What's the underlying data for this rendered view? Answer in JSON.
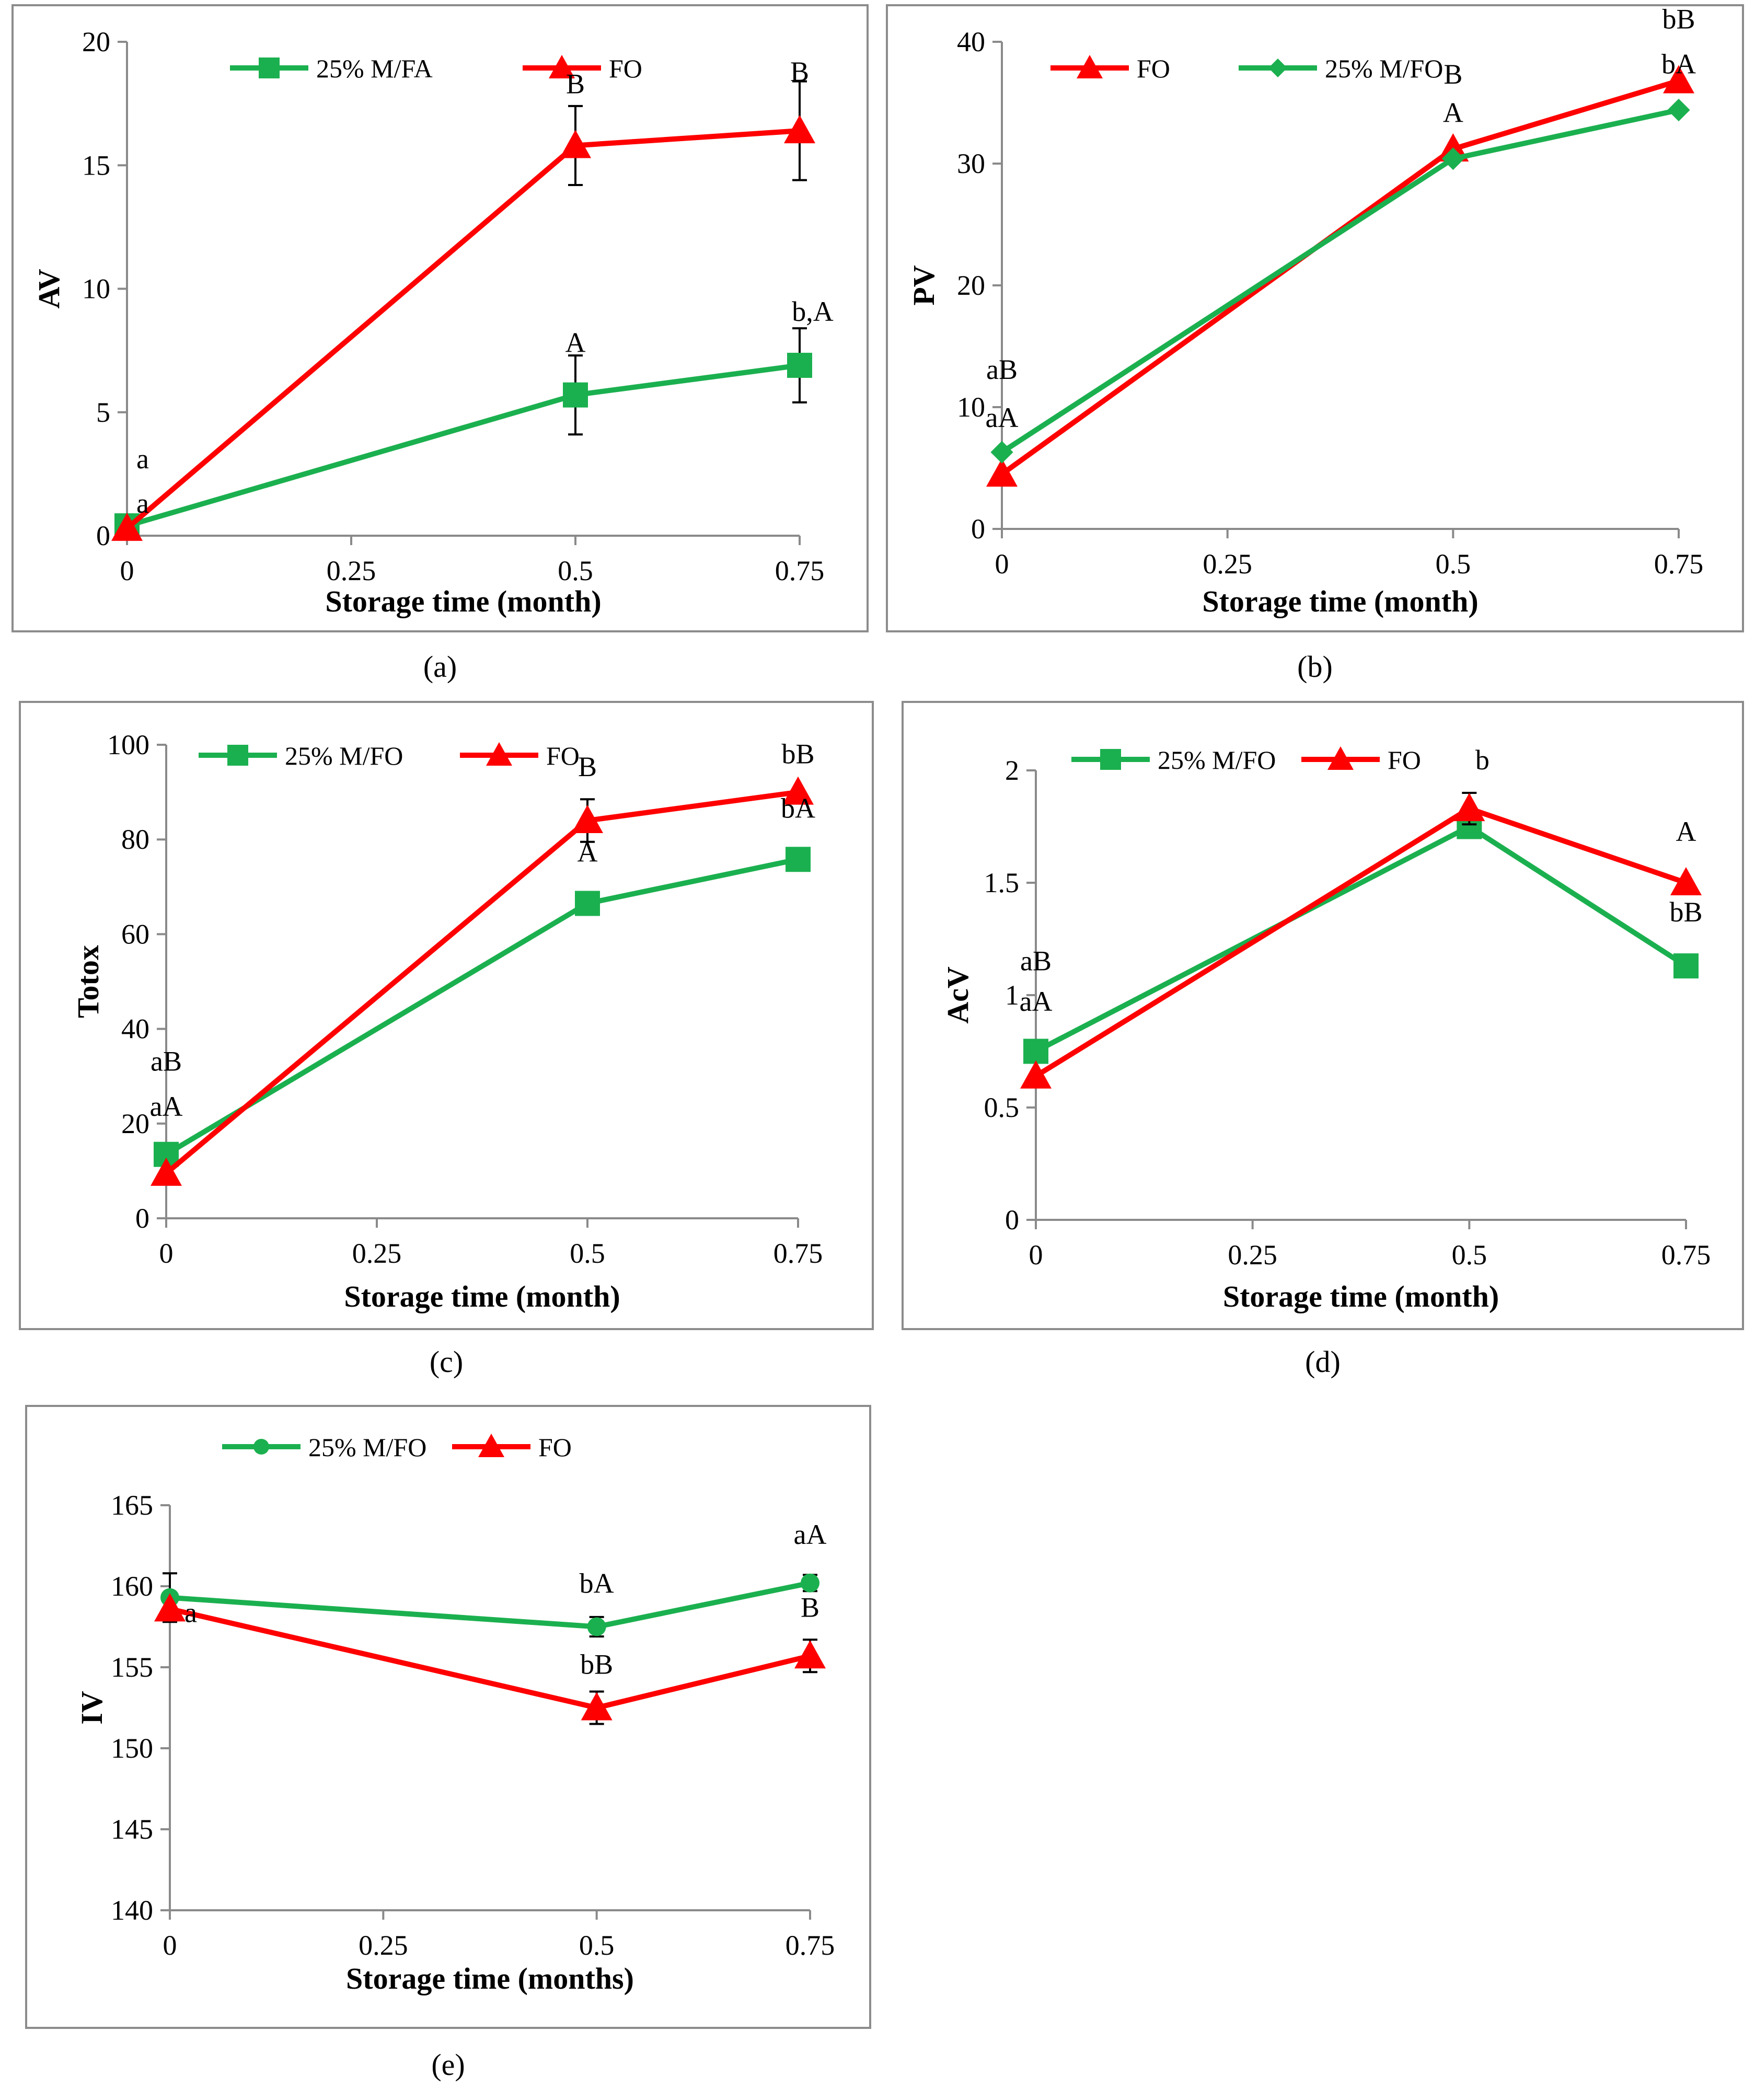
{
  "colors": {
    "green": "#1bb04f",
    "red": "#ff0000",
    "axis": "#8a8a8a",
    "frame": "#8c8c8c",
    "text": "#000000"
  },
  "chart_data": [
    {
      "id": "a",
      "type": "line",
      "panel_label": "(a)",
      "xlabel": "Storage time (month)",
      "ylabel": "AV",
      "xlim": [
        0,
        0.75
      ],
      "ylim": [
        0,
        20
      ],
      "xticks": [
        "0",
        "0.25",
        "0.5",
        "0.75"
      ],
      "yticks": [
        "0",
        "5",
        "10",
        "15",
        "20"
      ],
      "legend": [
        "25% M/FA",
        "FO"
      ],
      "series": [
        {
          "name": "25% M/FA",
          "color": "green",
          "marker": "square",
          "x": [
            0,
            0.5,
            0.75
          ],
          "y": [
            0.4,
            5.7,
            6.9
          ],
          "err": [
            0,
            1.6,
            1.5
          ]
        },
        {
          "name": "FO",
          "color": "red",
          "marker": "triangle",
          "x": [
            0,
            0.5,
            0.75
          ],
          "y": [
            0.3,
            15.8,
            16.4
          ],
          "err": [
            0,
            1.6,
            2.0
          ]
        }
      ],
      "annotations": [
        {
          "text": "a",
          "x": 0,
          "y": 0.4
        },
        {
          "text": "a",
          "x": 0,
          "y": 0.3
        },
        {
          "text": "A",
          "x": 0.5,
          "y": 5.7
        },
        {
          "text": "B",
          "x": 0.5,
          "y": 15.8
        },
        {
          "text": "b,A",
          "x": 0.75,
          "y": 6.9
        },
        {
          "text": "B",
          "x": 0.75,
          "y": 16.4
        }
      ]
    },
    {
      "id": "b",
      "type": "line",
      "panel_label": "(b)",
      "xlabel": "Storage time (month)",
      "ylabel": "PV",
      "xlim": [
        0,
        0.75
      ],
      "ylim": [
        0,
        40
      ],
      "xticks": [
        "0",
        "0.25",
        "0.5",
        "0.75"
      ],
      "yticks": [
        "0",
        "10",
        "20",
        "30",
        "40"
      ],
      "legend": [
        "FO",
        "25% M/FO"
      ],
      "series": [
        {
          "name": "FO",
          "color": "red",
          "marker": "triangle",
          "x": [
            0,
            0.5,
            0.75
          ],
          "y": [
            4.5,
            31.2,
            36.8
          ],
          "err": [
            0,
            0,
            0
          ]
        },
        {
          "name": "25% M/FO",
          "color": "green",
          "marker": "diamond",
          "x": [
            0,
            0.5,
            0.75
          ],
          "y": [
            6.3,
            30.4,
            34.4
          ],
          "err": [
            0,
            0,
            0
          ]
        }
      ],
      "annotations": [
        {
          "text": "aB",
          "x": 0,
          "y": 6.3
        },
        {
          "text": "aA",
          "x": 0,
          "y": 4.5
        },
        {
          "text": "B",
          "x": 0.5,
          "y": 31.2
        },
        {
          "text": "A",
          "x": 0.5,
          "y": 30.4
        },
        {
          "text": "bB",
          "x": 0.75,
          "y": 36.8
        },
        {
          "text": "bA",
          "x": 0.75,
          "y": 34.4
        }
      ]
    },
    {
      "id": "c",
      "type": "line",
      "panel_label": "(c)",
      "xlabel": "Storage time (month)",
      "ylabel": "Totox",
      "xlim": [
        0,
        0.75
      ],
      "ylim": [
        0,
        100
      ],
      "xticks": [
        "0",
        "0.25",
        "0.5",
        "0.75"
      ],
      "yticks": [
        "0",
        "20",
        "40",
        "60",
        "80",
        "100"
      ],
      "legend": [
        "25% M/FO",
        "FO"
      ],
      "series": [
        {
          "name": "25% M/FO",
          "color": "green",
          "marker": "square",
          "x": [
            0,
            0.5,
            0.75
          ],
          "y": [
            13.5,
            66.5,
            75.8
          ],
          "err": [
            0,
            0,
            0
          ]
        },
        {
          "name": "FO",
          "color": "red",
          "marker": "triangle",
          "x": [
            0,
            0.5,
            0.75
          ],
          "y": [
            9.5,
            84.0,
            90.0
          ],
          "err": [
            0,
            4.5,
            0
          ]
        }
      ],
      "annotations": [
        {
          "text": "aB",
          "x": 0,
          "y": 13.5
        },
        {
          "text": "aA",
          "x": 0,
          "y": 9.5
        },
        {
          "text": "B",
          "x": 0.5,
          "y": 84.0
        },
        {
          "text": "A",
          "x": 0.5,
          "y": 66.5
        },
        {
          "text": "bB",
          "x": 0.75,
          "y": 90.0
        },
        {
          "text": "bA",
          "x": 0.75,
          "y": 75.8
        }
      ]
    },
    {
      "id": "d",
      "type": "line",
      "panel_label": "(d)",
      "xlabel": "Storage time (month)",
      "ylabel": "AcV",
      "xlim": [
        0,
        0.75
      ],
      "ylim": [
        0,
        2
      ],
      "xticks": [
        "0",
        "0.25",
        "0.5",
        "0.75"
      ],
      "yticks": [
        "0",
        "0.5",
        "1",
        "1.5",
        "2"
      ],
      "legend": [
        "25% M/FO",
        "FO"
      ],
      "series": [
        {
          "name": "25% M/FO",
          "color": "green",
          "marker": "square",
          "x": [
            0,
            0.5,
            0.75
          ],
          "y": [
            0.75,
            1.75,
            1.13
          ],
          "err": [
            0,
            0.05,
            0
          ]
        },
        {
          "name": "FO",
          "color": "red",
          "marker": "triangle",
          "x": [
            0,
            0.5,
            0.75
          ],
          "y": [
            0.64,
            1.83,
            1.5
          ],
          "err": [
            0,
            0.07,
            0
          ]
        }
      ],
      "annotations": [
        {
          "text": "aB",
          "x": 0,
          "y": 0.75
        },
        {
          "text": "aA",
          "x": 0,
          "y": 0.64
        },
        {
          "text": "b",
          "x": 0.5,
          "y": 1.83
        },
        {
          "text": "A",
          "x": 0.75,
          "y": 1.5
        },
        {
          "text": "bB",
          "x": 0.75,
          "y": 1.13
        }
      ]
    },
    {
      "id": "e",
      "type": "line",
      "panel_label": "(e)",
      "xlabel": "Storage time (months)",
      "ylabel": "IV",
      "xlim": [
        0,
        0.75
      ],
      "ylim": [
        140,
        165
      ],
      "xticks": [
        "0",
        "0.25",
        "0.5",
        "0.75"
      ],
      "yticks": [
        "140",
        "145",
        "150",
        "155",
        "160",
        "165"
      ],
      "legend": [
        "25% M/FO",
        "FO"
      ],
      "series": [
        {
          "name": "25% M/FO",
          "color": "green",
          "marker": "circle",
          "x": [
            0,
            0.5,
            0.75
          ],
          "y": [
            159.3,
            157.5,
            160.2
          ],
          "err": [
            1.5,
            0.6,
            0.5
          ]
        },
        {
          "name": "FO",
          "color": "red",
          "marker": "triangle",
          "x": [
            0,
            0.5,
            0.75
          ],
          "y": [
            158.6,
            152.5,
            155.7
          ],
          "err": [
            0,
            1.0,
            1.0
          ]
        }
      ],
      "annotations": [
        {
          "text": "a",
          "x": 0,
          "y": 158.6
        },
        {
          "text": "bA",
          "x": 0.5,
          "y": 157.5
        },
        {
          "text": "bB",
          "x": 0.5,
          "y": 152.5
        },
        {
          "text": "aA",
          "x": 0.75,
          "y": 160.2
        },
        {
          "text": "B",
          "x": 0.75,
          "y": 155.7
        }
      ]
    }
  ]
}
